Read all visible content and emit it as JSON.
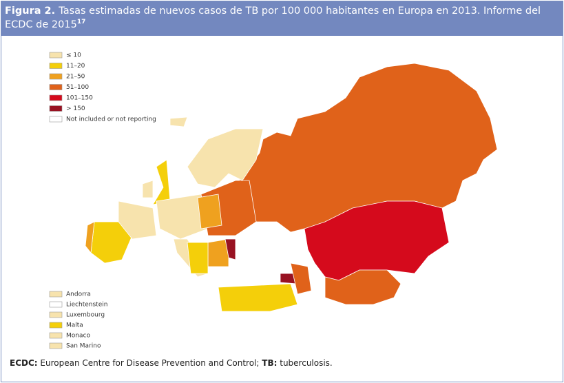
{
  "header": {
    "label": "Figura 2.",
    "title": "Tasas estimadas de nuevos casos de TB por 100 000 habitantes en Europa en 2013. Informe del ECDC de 2015",
    "ref": "17"
  },
  "legend": {
    "items": [
      {
        "label": "≤ 10",
        "color": "#f7e3ad"
      },
      {
        "label": "11–20",
        "color": "#f4cf0a"
      },
      {
        "label": "21–50",
        "color": "#efa11f"
      },
      {
        "label": "51–100",
        "color": "#e0621a"
      },
      {
        "label": "101–150",
        "color": "#d50a1c"
      },
      {
        "label": "> 150",
        "color": "#981222"
      },
      {
        "label": "Not included or not reporting",
        "color": "#ffffff"
      }
    ]
  },
  "small_countries": [
    {
      "label": "Andorra",
      "color": "#f7e3ad"
    },
    {
      "label": "Liechtenstein",
      "color": "#ffffff"
    },
    {
      "label": "Luxembourg",
      "color": "#f7e3ad"
    },
    {
      "label": "Malta",
      "color": "#f4cf0a"
    },
    {
      "label": "Monaco",
      "color": "#f7e3ad"
    },
    {
      "label": "San Marino",
      "color": "#f7e3ad"
    }
  ],
  "footnote": {
    "abbr1": "ECDC:",
    "text1": "European Centre for Disease Prevention and Control;",
    "abbr2": "TB:",
    "text2": "tuberculosis."
  }
}
